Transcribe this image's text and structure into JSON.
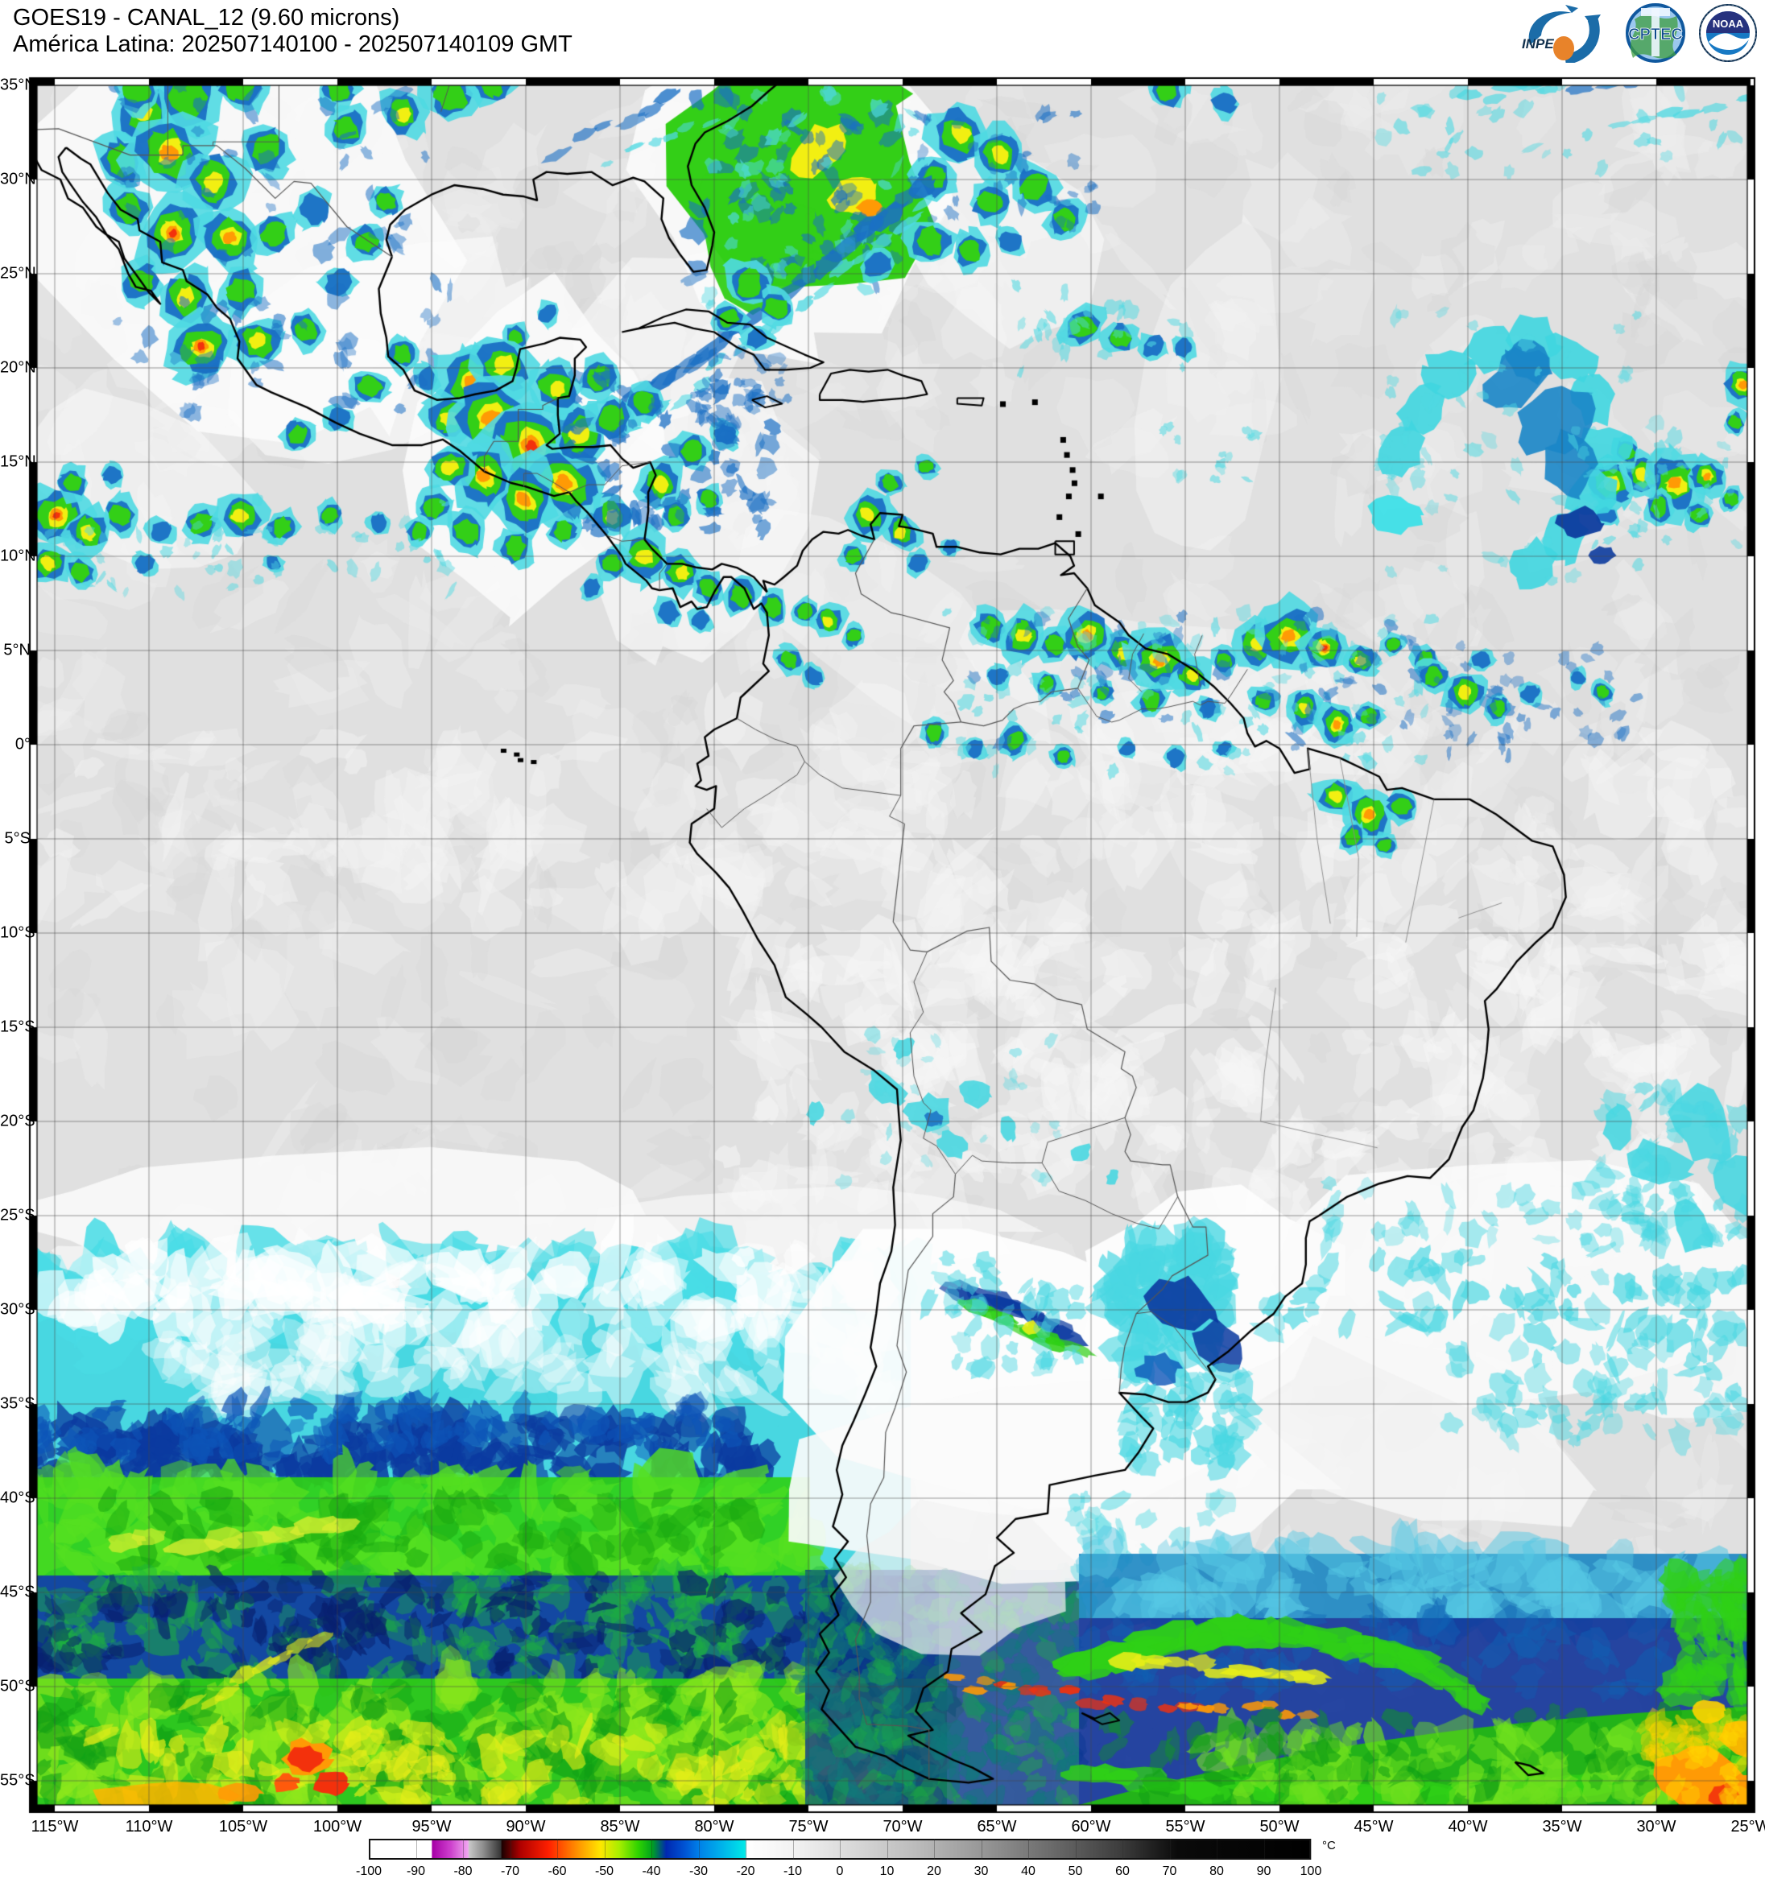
{
  "header": {
    "line1": "GOES19 - CANAL_12 (9.60 microns)",
    "line2": "América Latina: 202507140100 - 202507140109 GMT"
  },
  "logos": [
    {
      "id": "inpe",
      "label": "INPE"
    },
    {
      "id": "cptec",
      "label": "CPTEC"
    },
    {
      "id": "noaa",
      "label": "NOAA"
    }
  ],
  "map": {
    "lat_labels": [
      "35°N",
      "30°N",
      "25°N",
      "20°N",
      "15°N",
      "10°N",
      "5°N",
      "0°",
      "5°S",
      "10°S",
      "15°S",
      "20°S",
      "25°S",
      "30°S",
      "35°S",
      "40°S",
      "45°S",
      "50°S",
      "55°S"
    ],
    "lon_labels": [
      "115°W",
      "110°W",
      "105°W",
      "100°W",
      "95°W",
      "90°W",
      "85°W",
      "80°W",
      "75°W",
      "70°W",
      "65°W",
      "60°W",
      "55°W",
      "50°W",
      "45°W",
      "40°W",
      "35°W",
      "30°W",
      "25°W"
    ]
  },
  "colorbar": {
    "unit": "°C",
    "ticks": [
      "-100",
      "-90",
      "-80",
      "-70",
      "-60",
      "-50",
      "-40",
      "-30",
      "-20",
      "-10",
      "0",
      "10",
      "20",
      "30",
      "40",
      "50",
      "60",
      "70",
      "80",
      "90",
      "100"
    ]
  },
  "colors": {
    "background": "#e2e2e2",
    "cold_cyan": "#3fd6e2",
    "cold_blue": "#1a6fc4",
    "cold_green": "#33cf17",
    "cold_yellow": "#f2ef12",
    "cold_orange": "#ff9a05",
    "cold_red": "#f3310c"
  }
}
